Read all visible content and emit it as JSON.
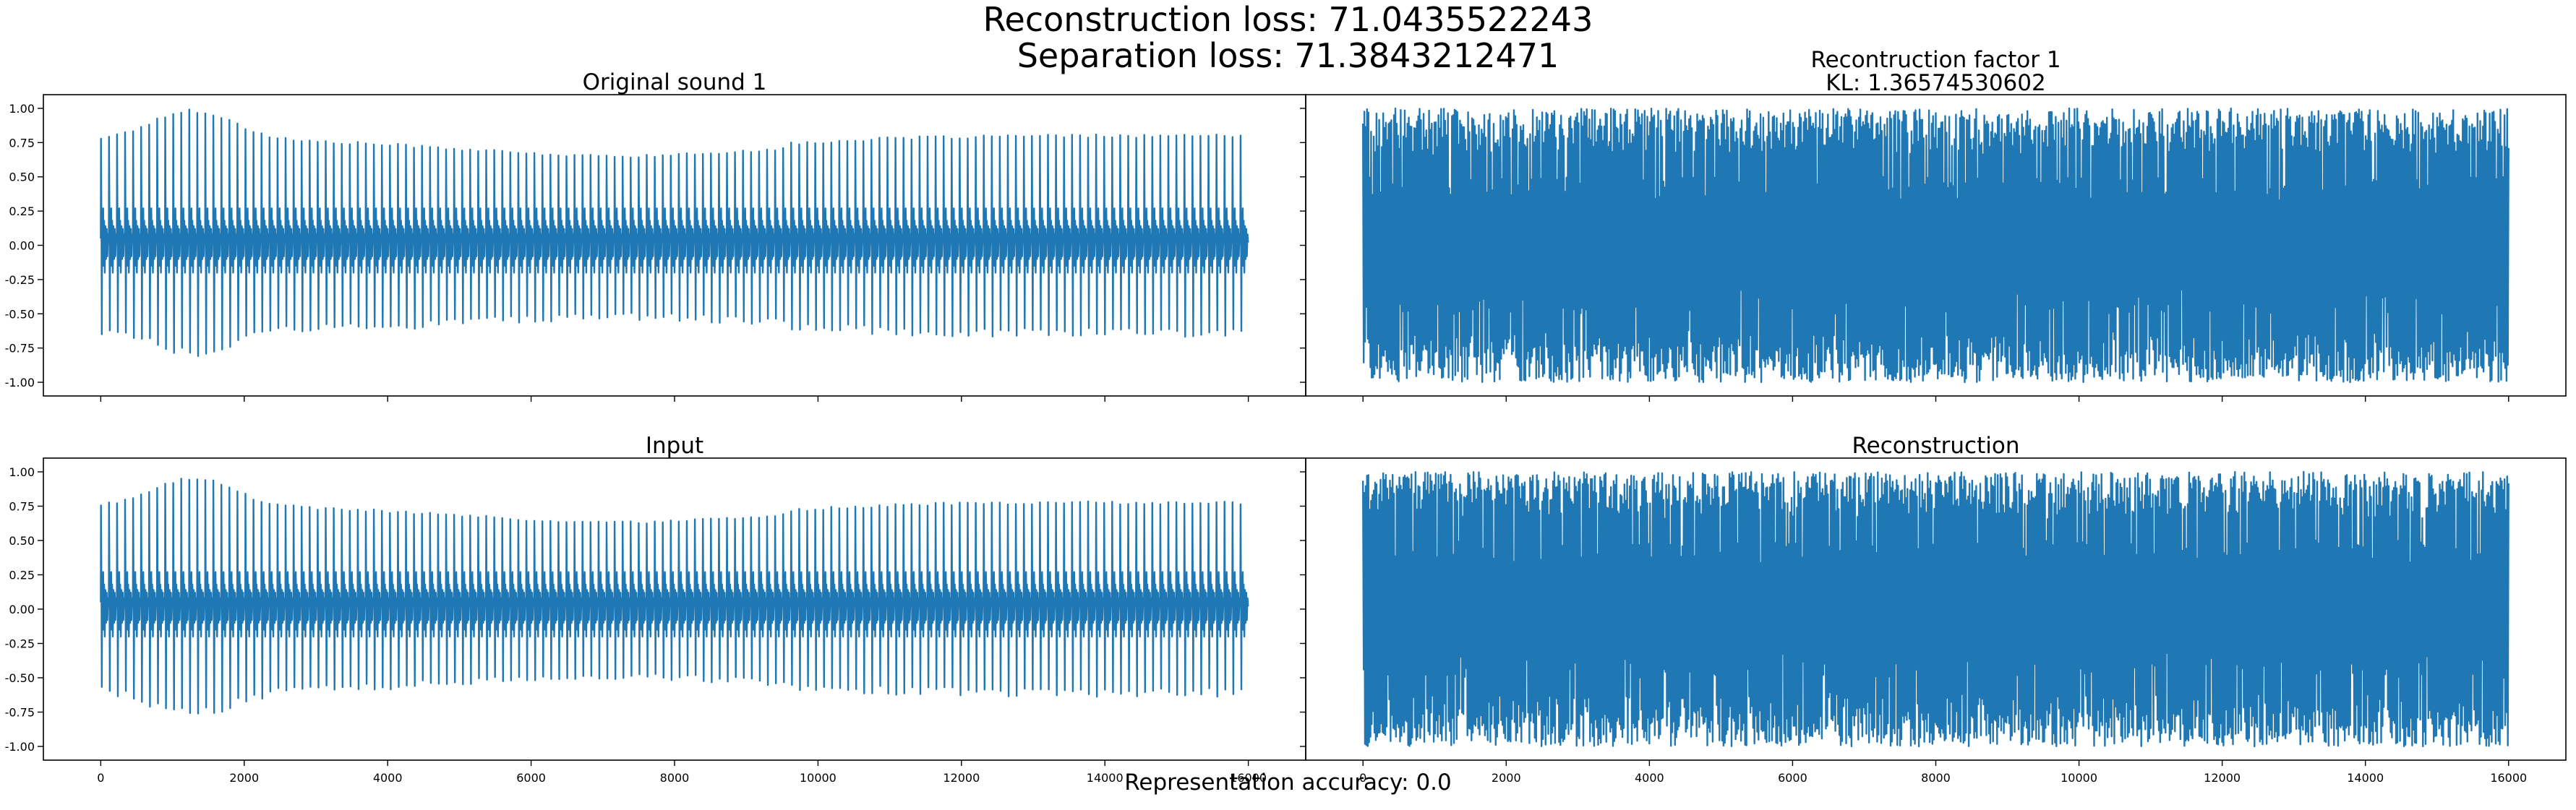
{
  "figure": {
    "suptitle_line1": "Reconstruction loss: 71.0435522243",
    "suptitle_line2": "Separation loss: 71.3843212471",
    "footer": "Representation accuracy: 0.0",
    "line_color": "#1f77b4"
  },
  "chart_data": [
    {
      "type": "line",
      "title": "Original sound 1",
      "subtitle": "",
      "xlabel": "",
      "ylabel": "",
      "xlim": [
        -800,
        16800
      ],
      "ylim": [
        -1.1,
        1.1
      ],
      "xticks": [
        0,
        2000,
        4000,
        6000,
        8000,
        10000,
        12000,
        14000,
        16000
      ],
      "xticks_labeled": false,
      "yticks": [
        1.0,
        0.75,
        0.5,
        0.25,
        0.0,
        -0.25,
        -0.5,
        -0.75,
        -1.0
      ],
      "ytick_labels": [
        "1.00",
        "0.75",
        "0.50",
        "0.25",
        "0.00",
        "-0.25",
        "-0.50",
        "-0.75",
        "-1.00"
      ],
      "yticks_labeled": true,
      "grid": false,
      "signal": "periodic-pulses",
      "n_samples": 16000,
      "amplitude_range": [
        -0.83,
        1.0
      ],
      "pulse_count": 143
    },
    {
      "type": "line",
      "title": "Recontruction factor 1",
      "subtitle": "KL: 1.36574530602",
      "xlabel": "",
      "ylabel": "",
      "xlim": [
        -800,
        16800
      ],
      "ylim": [
        -1.1,
        1.1
      ],
      "xticks": [
        0,
        2000,
        4000,
        6000,
        8000,
        10000,
        12000,
        14000,
        16000
      ],
      "xticks_labeled": false,
      "yticks": [
        1.0,
        0.75,
        0.5,
        0.25,
        0.0,
        -0.25,
        -0.5,
        -0.75,
        -1.0
      ],
      "yticks_labeled": false,
      "grid": false,
      "signal": "dense-noise",
      "n_samples": 16000,
      "amplitude_range": [
        -1.0,
        1.0
      ]
    },
    {
      "type": "line",
      "title": "Input",
      "subtitle": "",
      "xlabel": "",
      "ylabel": "",
      "xlim": [
        -800,
        16800
      ],
      "ylim": [
        -1.1,
        1.1
      ],
      "xticks": [
        0,
        2000,
        4000,
        6000,
        8000,
        10000,
        12000,
        14000,
        16000
      ],
      "xtick_labels": [
        "0",
        "2000",
        "4000",
        "6000",
        "8000",
        "10000",
        "12000",
        "14000",
        "16000"
      ],
      "xticks_labeled": true,
      "yticks": [
        1.0,
        0.75,
        0.5,
        0.25,
        0.0,
        -0.25,
        -0.5,
        -0.75,
        -1.0
      ],
      "ytick_labels": [
        "1.00",
        "0.75",
        "0.50",
        "0.25",
        "0.00",
        "-0.25",
        "-0.50",
        "-0.75",
        "-1.00"
      ],
      "yticks_labeled": true,
      "grid": false,
      "signal": "periodic-pulses",
      "n_samples": 16000,
      "amplitude_range": [
        -0.79,
        0.97
      ],
      "pulse_count": 143
    },
    {
      "type": "line",
      "title": "Reconstruction",
      "subtitle": "",
      "xlabel": "",
      "ylabel": "",
      "xlim": [
        -800,
        16800
      ],
      "ylim": [
        -1.1,
        1.1
      ],
      "xticks": [
        0,
        2000,
        4000,
        6000,
        8000,
        10000,
        12000,
        14000,
        16000
      ],
      "xtick_labels": [
        "0",
        "2000",
        "4000",
        "6000",
        "8000",
        "10000",
        "12000",
        "14000",
        "16000"
      ],
      "xticks_labeled": true,
      "yticks": [
        1.0,
        0.75,
        0.5,
        0.25,
        0.0,
        -0.25,
        -0.5,
        -0.75,
        -1.0
      ],
      "yticks_labeled": false,
      "grid": false,
      "signal": "dense-noise",
      "n_samples": 16000,
      "amplitude_range": [
        -1.0,
        1.0
      ]
    }
  ]
}
